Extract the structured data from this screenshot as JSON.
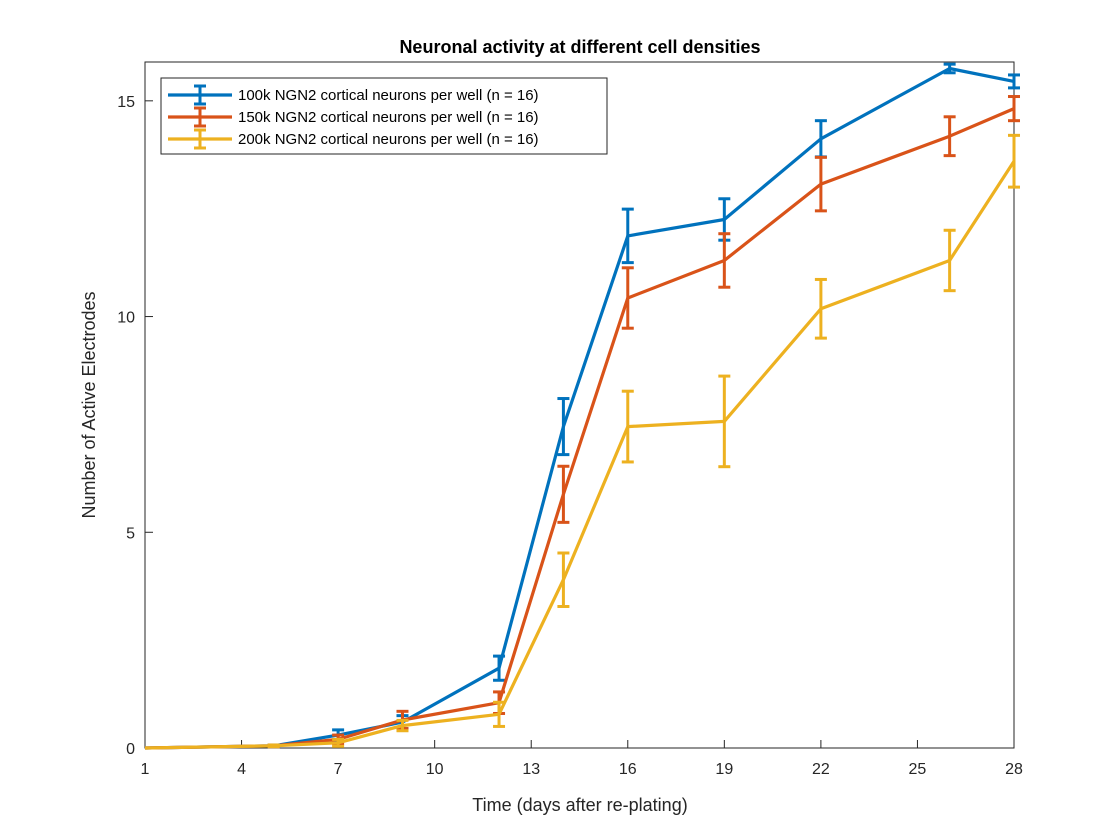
{
  "chart_data": {
    "type": "line",
    "title": "Neuronal activity at different cell densities",
    "xlabel": "Time (days after re-plating)",
    "ylabel": "Number of Active Electrodes",
    "xlim": [
      1,
      28
    ],
    "ylim": [
      0,
      15.9
    ],
    "xticks": [
      1,
      4,
      7,
      10,
      13,
      16,
      19,
      22,
      25,
      28
    ],
    "yticks": [
      0,
      5,
      10,
      15
    ],
    "legend_position": "top-left",
    "grid": false,
    "series": [
      {
        "name": "100k NGN2 cortical neurons per well (n = 16)",
        "color": "#0072BD",
        "x": [
          1,
          5,
          7,
          9,
          12,
          14,
          16,
          19,
          22,
          26,
          28
        ],
        "y": [
          0.0,
          0.05,
          0.3,
          0.6,
          1.85,
          7.45,
          11.87,
          12.25,
          14.12,
          15.75,
          15.45
        ],
        "err": [
          0.0,
          0.02,
          0.12,
          0.15,
          0.28,
          0.65,
          0.62,
          0.48,
          0.42,
          0.1,
          0.15
        ]
      },
      {
        "name": "150k NGN2 cortical neurons per well (n = 16)",
        "color": "#D95319",
        "x": [
          1,
          5,
          7,
          9,
          12,
          14,
          16,
          19,
          22,
          26,
          28
        ],
        "y": [
          0.0,
          0.05,
          0.2,
          0.65,
          1.05,
          5.88,
          10.43,
          11.3,
          13.07,
          14.18,
          14.82
        ],
        "err": [
          0.0,
          0.02,
          0.1,
          0.2,
          0.25,
          0.65,
          0.7,
          0.62,
          0.62,
          0.45,
          0.28
        ]
      },
      {
        "name": "200k NGN2 cortical neurons per well (n = 16)",
        "color": "#EDB120",
        "x": [
          1,
          5,
          7,
          9,
          12,
          14,
          16,
          19,
          22,
          26,
          28
        ],
        "y": [
          0.0,
          0.05,
          0.12,
          0.52,
          0.78,
          3.9,
          7.45,
          7.57,
          10.18,
          11.3,
          13.6
        ],
        "err": [
          0.0,
          0.02,
          0.08,
          0.12,
          0.28,
          0.62,
          0.82,
          1.05,
          0.68,
          0.7,
          0.6
        ]
      }
    ]
  }
}
